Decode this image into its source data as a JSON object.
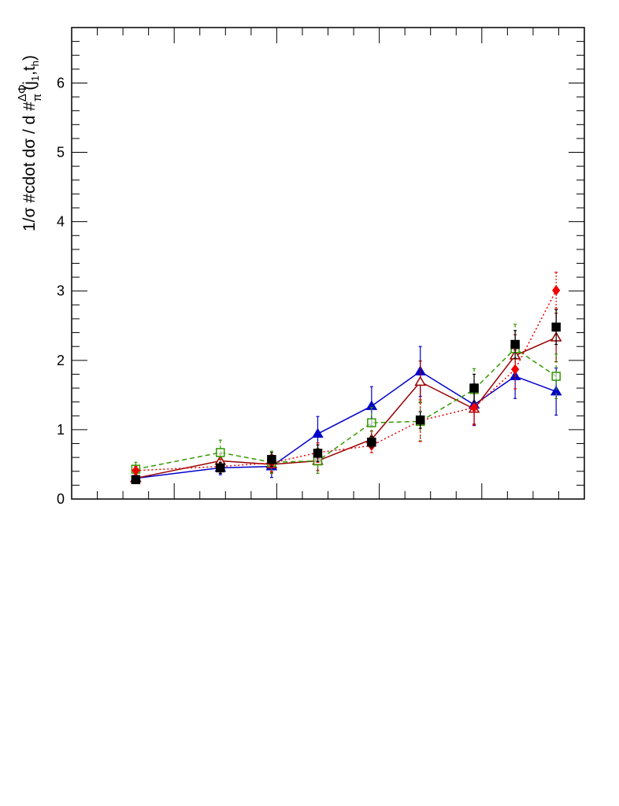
{
  "chart_data": {
    "type": "scatter",
    "title": "",
    "xlabel": "",
    "ylabel": "1/σ #cdot dσ / d #frac{ΔΦ}{π}(j_{1},t_{h})",
    "ylabel_parts": {
      "prefix": "1/σ #cdot dσ / d #",
      "frac_num": "ΔΦ",
      "frac_den": "π",
      "suffix_open": "(j",
      "sub1": "1",
      "suffix_mid": ",t",
      "sub2": "h",
      "suffix_close": ")"
    },
    "xlim": [
      0,
      1
    ],
    "ylim": [
      0,
      6.8
    ],
    "yticks": [
      0,
      1,
      2,
      3,
      4,
      5,
      6
    ],
    "ytick_labels": [
      "0",
      "1",
      "2",
      "3",
      "4",
      "5",
      "6"
    ],
    "grid": false,
    "series": [
      {
        "color": "#0000cc",
        "marker": "triangle-filled",
        "line": "solid",
        "x": [
          0.125,
          0.29,
          0.39,
          0.48,
          0.585,
          0.68,
          0.785,
          0.865,
          0.945
        ],
        "y": [
          0.3,
          0.45,
          0.47,
          0.94,
          1.34,
          1.84,
          1.36,
          1.77,
          1.55
        ],
        "err": [
          0.04,
          0.1,
          0.16,
          0.25,
          0.28,
          0.36,
          0.3,
          0.32,
          0.34
        ]
      },
      {
        "color": "#990000",
        "marker": "triangle-open",
        "line": "solid",
        "x": [
          0.125,
          0.29,
          0.39,
          0.48,
          0.585,
          0.68,
          0.785,
          0.865,
          0.945
        ],
        "y": [
          0.3,
          0.55,
          0.5,
          0.55,
          0.86,
          1.69,
          1.3,
          2.07,
          2.33
        ],
        "err": [
          0.05,
          0.1,
          0.12,
          0.14,
          0.12,
          0.3,
          0.22,
          0.3,
          0.35
        ]
      },
      {
        "color": "#339900",
        "marker": "square-open",
        "line": "dashed",
        "x": [
          0.125,
          0.29,
          0.39,
          0.48,
          0.585,
          0.68,
          0.785,
          0.865,
          0.945
        ],
        "y": [
          0.43,
          0.67,
          0.53,
          0.55,
          1.1,
          1.12,
          1.58,
          2.17,
          1.77
        ],
        "err": [
          0.1,
          0.18,
          0.16,
          0.18,
          0.22,
          0.28,
          0.3,
          0.35,
          0.32
        ]
      },
      {
        "color": "#ee0000",
        "marker": "diamond-filled",
        "line": "dotted",
        "x": [
          0.125,
          0.29,
          0.39,
          0.48,
          0.585,
          0.68,
          0.785,
          0.865,
          0.945
        ],
        "y": [
          0.41,
          0.47,
          0.52,
          0.67,
          0.77,
          1.13,
          1.32,
          1.87,
          3.01
        ],
        "err": [
          0.06,
          0.1,
          0.12,
          0.14,
          0.1,
          0.3,
          0.25,
          0.28,
          0.26
        ]
      },
      {
        "color": "#000000",
        "marker": "square-filled",
        "line": "none",
        "x": [
          0.125,
          0.29,
          0.39,
          0.48,
          0.585,
          0.68,
          0.785,
          0.865,
          0.945
        ],
        "y": [
          0.28,
          0.45,
          0.57,
          0.66,
          0.82,
          1.14,
          1.6,
          2.23,
          2.48
        ],
        "err": [
          0.03,
          0.08,
          0.1,
          0.12,
          0.08,
          0.12,
          0.2,
          0.2,
          0.25
        ]
      }
    ]
  }
}
